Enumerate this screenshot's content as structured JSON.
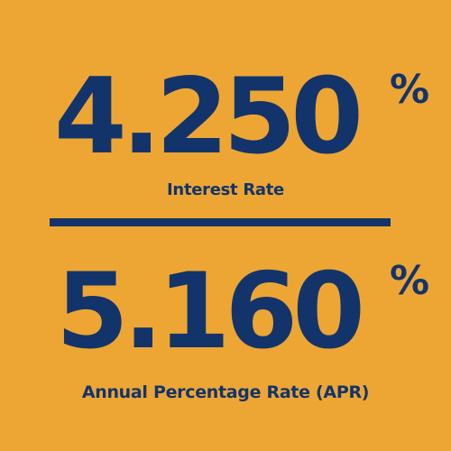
{
  "interest_rate": {
    "value": "4.250",
    "unit": "%",
    "label": "Interest Rate"
  },
  "apr": {
    "value": "5.160",
    "unit": "%",
    "label": "Annual Percentage Rate (APR)"
  },
  "colors": {
    "background": "#EDA634",
    "text": "#13346B"
  }
}
